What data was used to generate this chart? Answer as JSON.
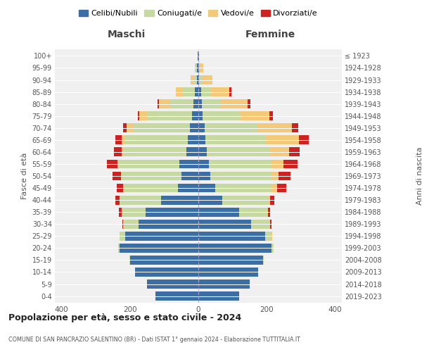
{
  "age_groups": [
    "0-4",
    "5-9",
    "10-14",
    "15-19",
    "20-24",
    "25-29",
    "30-34",
    "35-39",
    "40-44",
    "45-49",
    "50-54",
    "55-59",
    "60-64",
    "65-69",
    "70-74",
    "75-79",
    "80-84",
    "85-89",
    "90-94",
    "95-99",
    "100+"
  ],
  "birth_years": [
    "2019-2023",
    "2014-2018",
    "2009-2013",
    "2004-2008",
    "1999-2003",
    "1994-1998",
    "1989-1993",
    "1984-1988",
    "1979-1983",
    "1974-1978",
    "1969-1973",
    "1964-1968",
    "1959-1963",
    "1954-1958",
    "1949-1953",
    "1944-1948",
    "1939-1943",
    "1934-1938",
    "1929-1933",
    "1924-1928",
    "≤ 1923"
  ],
  "maschi": {
    "celibi": [
      125,
      150,
      185,
      200,
      230,
      215,
      175,
      155,
      110,
      60,
      50,
      55,
      35,
      30,
      25,
      18,
      15,
      10,
      4,
      5,
      2
    ],
    "coniugati": [
      0,
      0,
      0,
      1,
      5,
      15,
      45,
      70,
      120,
      160,
      175,
      180,
      185,
      185,
      165,
      130,
      70,
      35,
      8,
      3,
      0
    ],
    "vedovi": [
      0,
      0,
      0,
      0,
      0,
      0,
      0,
      0,
      0,
      1,
      2,
      2,
      5,
      10,
      20,
      25,
      30,
      20,
      10,
      3,
      0
    ],
    "divorziati": [
      0,
      0,
      0,
      0,
      0,
      1,
      3,
      8,
      12,
      18,
      25,
      30,
      22,
      18,
      10,
      5,
      5,
      0,
      0,
      0,
      0
    ]
  },
  "femmine": {
    "nubili": [
      120,
      150,
      175,
      190,
      215,
      195,
      155,
      120,
      70,
      50,
      35,
      30,
      25,
      20,
      18,
      12,
      10,
      8,
      3,
      3,
      2
    ],
    "coniugate": [
      0,
      0,
      0,
      1,
      5,
      20,
      55,
      80,
      135,
      165,
      180,
      185,
      185,
      175,
      155,
      110,
      55,
      28,
      8,
      2,
      0
    ],
    "vedove": [
      0,
      0,
      0,
      0,
      0,
      1,
      1,
      3,
      5,
      15,
      20,
      35,
      55,
      100,
      100,
      85,
      80,
      55,
      30,
      10,
      1
    ],
    "divorziate": [
      0,
      0,
      0,
      0,
      0,
      1,
      3,
      8,
      12,
      28,
      35,
      40,
      32,
      28,
      20,
      12,
      8,
      5,
      0,
      0,
      0
    ]
  },
  "colors": {
    "celibi_nubili": "#3a6ea5",
    "coniugati": "#c5d9a0",
    "vedovi": "#f5c97a",
    "divorziati": "#cc2222"
  },
  "title": "Popolazione per età, sesso e stato civile - 2024",
  "subtitle": "COMUNE DI SAN PANCRAZIO SALENTINO (BR) - Dati ISTAT 1° gennaio 2024 - Elaborazione TUTTITALIA.IT",
  "xlabel_left": "Maschi",
  "xlabel_right": "Femmine",
  "ylabel_left": "Fasce di età",
  "ylabel_right": "Anni di nascita",
  "xlim": 420,
  "background_color": "#ffffff",
  "plot_bg": "#f0f0f0",
  "legend_labels": [
    "Celibi/Nubili",
    "Coniugati/e",
    "Vedovi/e",
    "Divorziati/e"
  ]
}
